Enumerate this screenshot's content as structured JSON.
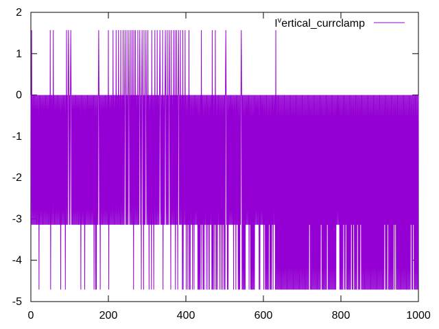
{
  "chart_data": {
    "type": "line",
    "title": "",
    "xlabel": "",
    "ylabel": "",
    "xlim": [
      0,
      1000
    ],
    "ylim": [
      -5,
      2
    ],
    "x_ticks": [
      "0",
      "200",
      "400",
      "600",
      "800",
      "1000"
    ],
    "y_ticks": [
      "2",
      "1",
      "0",
      "-1",
      "-2",
      "-3",
      "-4",
      "-5"
    ],
    "grid": false,
    "legend_position": "top-right",
    "series": [
      {
        "name": "I^vertical_currclamp",
        "name_main": "I",
        "name_sup": "v",
        "name_rest": "ertical_currclamp",
        "color": "#9400d3",
        "description_of_levels": [
          1.57,
          0,
          -3.14,
          -4.71
        ],
        "sampling": "1001 samples, x = 0..1000, step 1",
        "values_note": "signal alternates between the levels below on nearly every sample",
        "levels": {
          "high": 1.57,
          "zero": 0,
          "mid": -3.14,
          "low": -4.71
        },
        "phases": [
          {
            "x_range": [
              0,
              430
            ],
            "dominant_levels": [
              0,
              -3.14
            ],
            "spikes_to": [
              1.57,
              -4.71
            ]
          },
          {
            "x_range": [
              430,
              630
            ],
            "dominant_levels": [
              0,
              -3.14,
              -4.71
            ],
            "spikes_to": [
              1.57
            ]
          },
          {
            "x_range": [
              630,
              1000
            ],
            "dominant_levels": [
              0,
              -4.71
            ],
            "spikes_to": [
              -3.14
            ]
          }
        ],
        "spike_high_x": [
          2,
          50,
          58,
          92,
          97,
          103,
          175,
          200,
          212,
          220,
          226,
          232,
          238,
          243,
          248,
          253,
          258,
          262,
          266,
          270,
          276,
          281,
          287,
          292,
          297,
          302,
          312,
          320,
          326,
          333,
          340,
          347,
          352,
          357,
          362,
          368,
          372,
          376,
          381,
          386,
          392,
          398,
          408,
          440,
          468,
          476,
          503,
          543,
          632
        ]
      }
    ]
  }
}
